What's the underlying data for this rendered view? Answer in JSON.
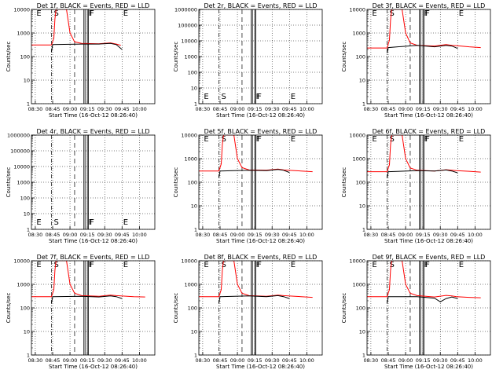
{
  "colors": {
    "events": "#000000",
    "lld": "#ff0000",
    "background": "#ffffff"
  },
  "chart_data": [
    {
      "type": "line",
      "title": "Det 1f, BLACK = Events, RED = LLD",
      "xlabel": "Start Time (16-Oct-12 08:26:40)",
      "ylabel": "Counts/sec",
      "ylog": true,
      "ylim": [
        1,
        10000
      ],
      "x_ticks": [
        "08:30",
        "08:45",
        "09:00",
        "09:15",
        "09:30",
        "09:45",
        "10:00"
      ],
      "y_ticks": [
        "1",
        "10",
        "100",
        "1000",
        "10000"
      ],
      "flags": [
        {
          "label": "E",
          "x": "08:30"
        },
        {
          "label": "S",
          "x": "08:45"
        },
        {
          "label": "F",
          "x": "09:15"
        },
        {
          "label": "F",
          "x": "09:16"
        },
        {
          "label": "E",
          "x": "09:45"
        }
      ],
      "series": [
        {
          "x": [
            "08:26",
            "08:44",
            "08:46",
            "08:47",
            "08:48",
            "08:53",
            "08:55",
            "08:57",
            "09:00",
            "09:04",
            "09:10",
            "09:25",
            "09:35",
            "09:40",
            "09:44"
          ],
          "y": [
            310,
            310,
            600,
            4000,
            10000,
            10000,
            10000,
            10000,
            1000,
            420,
            360,
            350,
            380,
            340,
            300
          ],
          "color": "#ff0000"
        },
        {
          "x": [
            "08:44",
            "08:45",
            "09:10",
            "09:25",
            "09:35",
            "09:40",
            "09:45"
          ],
          "y": [
            160,
            320,
            340,
            340,
            360,
            320,
            200
          ],
          "color": "#000000"
        }
      ]
    },
    {
      "type": "line",
      "title": "Det 2r, BLACK = Events, RED = LLD",
      "xlabel": "Start Time (16-Oct-12 08:26:40)",
      "ylabel": "Counts/sec",
      "ylog": true,
      "ylim": [
        1,
        1000000
      ],
      "x_ticks": [
        "08:30",
        "08:45",
        "09:00",
        "09:15",
        "09:30",
        "09:45",
        "10:00"
      ],
      "y_ticks": [
        "1",
        "10",
        "100",
        "1000",
        "10000",
        "100000",
        "1000000"
      ],
      "flags": [
        {
          "label": "E",
          "x": "08:30"
        },
        {
          "label": "S",
          "x": "08:45"
        },
        {
          "label": "F",
          "x": "09:15"
        },
        {
          "label": "F",
          "x": "09:16"
        },
        {
          "label": "E",
          "x": "09:45"
        }
      ],
      "series": []
    },
    {
      "type": "line",
      "title": "Det 3f, BLACK = Events, RED = LLD",
      "xlabel": "Start Time (16-Oct-12 08:26:40)",
      "ylabel": "Counts/sec",
      "ylog": true,
      "ylim": [
        1,
        10000
      ],
      "x_ticks": [
        "08:30",
        "08:45",
        "09:00",
        "09:15",
        "09:30",
        "09:45",
        "10:00"
      ],
      "y_ticks": [
        "1",
        "10",
        "100",
        "1000",
        "10000"
      ],
      "flags": [
        {
          "label": "E",
          "x": "08:30"
        },
        {
          "label": "S",
          "x": "08:45"
        },
        {
          "label": "F",
          "x": "09:15"
        },
        {
          "label": "F",
          "x": "09:16"
        },
        {
          "label": "E",
          "x": "09:45"
        }
      ],
      "series": [
        {
          "x": [
            "08:26",
            "08:44",
            "08:46",
            "08:47",
            "08:48",
            "08:53",
            "08:55",
            "08:57",
            "09:00",
            "09:04",
            "09:10",
            "09:25",
            "09:35",
            "09:40",
            "09:44",
            "09:55",
            "10:05"
          ],
          "y": [
            230,
            230,
            500,
            3500,
            10000,
            10000,
            10000,
            10000,
            1000,
            380,
            300,
            280,
            320,
            300,
            290,
            260,
            240
          ],
          "color": "#ff0000"
        },
        {
          "x": [
            "08:44",
            "08:45",
            "09:10",
            "09:25",
            "09:35",
            "09:40",
            "09:45"
          ],
          "y": [
            140,
            240,
            300,
            260,
            300,
            280,
            220
          ],
          "color": "#000000"
        }
      ]
    },
    {
      "type": "line",
      "title": "Det 4r, BLACK = Events, RED = LLD",
      "xlabel": "Start Time (16-Oct-12 08:26:40)",
      "ylabel": "Counts/sec",
      "ylog": true,
      "ylim": [
        1,
        1000000
      ],
      "x_ticks": [
        "08:30",
        "08:45",
        "09:00",
        "09:15",
        "09:30",
        "09:45",
        "10:00"
      ],
      "y_ticks": [
        "1",
        "10",
        "100",
        "1000",
        "10000",
        "100000",
        "1000000"
      ],
      "flags": [
        {
          "label": "E",
          "x": "08:30"
        },
        {
          "label": "S",
          "x": "08:45"
        },
        {
          "label": "F",
          "x": "09:15"
        },
        {
          "label": "F",
          "x": "09:16"
        },
        {
          "label": "E",
          "x": "09:45"
        }
      ],
      "series": []
    },
    {
      "type": "line",
      "title": "Det 5f, BLACK = Events, RED = LLD",
      "xlabel": "Start Time (16-Oct-12 08:26:40)",
      "ylabel": "Counts/sec",
      "ylog": true,
      "ylim": [
        1,
        10000
      ],
      "x_ticks": [
        "08:30",
        "08:45",
        "09:00",
        "09:15",
        "09:30",
        "09:45",
        "10:00"
      ],
      "y_ticks": [
        "1",
        "10",
        "100",
        "1000",
        "10000"
      ],
      "flags": [
        {
          "label": "E",
          "x": "08:30"
        },
        {
          "label": "S",
          "x": "08:45"
        },
        {
          "label": "F",
          "x": "09:15"
        },
        {
          "label": "F",
          "x": "09:16"
        },
        {
          "label": "E",
          "x": "09:45"
        }
      ],
      "series": [
        {
          "x": [
            "08:26",
            "08:44",
            "08:46",
            "08:47",
            "08:48",
            "08:53",
            "08:55",
            "08:57",
            "09:00",
            "09:04",
            "09:10",
            "09:25",
            "09:35",
            "09:40",
            "09:44",
            "09:55",
            "10:05"
          ],
          "y": [
            300,
            300,
            600,
            4000,
            10000,
            10000,
            10000,
            10000,
            1000,
            420,
            330,
            320,
            360,
            330,
            320,
            300,
            280
          ],
          "color": "#ff0000"
        },
        {
          "x": [
            "08:44",
            "08:45",
            "09:10",
            "09:25",
            "09:35",
            "09:40",
            "09:45"
          ],
          "y": [
            160,
            300,
            320,
            310,
            350,
            320,
            260
          ],
          "color": "#000000"
        }
      ]
    },
    {
      "type": "line",
      "title": "Det 6f, BLACK = Events, RED = LLD",
      "xlabel": "Start Time (16-Oct-12 08:26:40)",
      "ylabel": "Counts/sec",
      "ylog": true,
      "ylim": [
        1,
        10000
      ],
      "x_ticks": [
        "08:30",
        "08:45",
        "09:00",
        "09:15",
        "09:30",
        "09:45",
        "10:00"
      ],
      "y_ticks": [
        "1",
        "10",
        "100",
        "1000",
        "10000"
      ],
      "flags": [
        {
          "label": "E",
          "x": "08:30"
        },
        {
          "label": "S",
          "x": "08:45"
        },
        {
          "label": "F",
          "x": "09:15"
        },
        {
          "label": "F",
          "x": "09:16"
        },
        {
          "label": "E",
          "x": "09:45"
        }
      ],
      "series": [
        {
          "x": [
            "08:26",
            "08:44",
            "08:46",
            "08:47",
            "08:48",
            "08:53",
            "08:55",
            "08:57",
            "09:00",
            "09:04",
            "09:10",
            "09:25",
            "09:35",
            "09:40",
            "09:44",
            "09:55",
            "10:05"
          ],
          "y": [
            280,
            280,
            550,
            3800,
            10000,
            10000,
            10000,
            10000,
            1000,
            400,
            320,
            300,
            340,
            320,
            310,
            290,
            270
          ],
          "color": "#ff0000"
        },
        {
          "x": [
            "08:44",
            "08:45",
            "09:10",
            "09:25",
            "09:35",
            "09:40",
            "09:45"
          ],
          "y": [
            150,
            280,
            310,
            300,
            330,
            300,
            250
          ],
          "color": "#000000"
        }
      ]
    },
    {
      "type": "line",
      "title": "Det 7f, BLACK = Events, RED = LLD",
      "xlabel": "Start Time (16-Oct-12 08:26:40)",
      "ylabel": "Counts/sec",
      "ylog": true,
      "ylim": [
        1,
        10000
      ],
      "x_ticks": [
        "08:30",
        "08:45",
        "09:00",
        "09:15",
        "09:30",
        "09:45",
        "10:00"
      ],
      "y_ticks": [
        "1",
        "10",
        "100",
        "1000",
        "10000"
      ],
      "flags": [
        {
          "label": "E",
          "x": "08:30"
        },
        {
          "label": "S",
          "x": "08:45"
        },
        {
          "label": "F",
          "x": "09:15"
        },
        {
          "label": "F",
          "x": "09:16"
        },
        {
          "label": "E",
          "x": "09:45"
        }
      ],
      "series": [
        {
          "x": [
            "08:26",
            "08:44",
            "08:46",
            "08:47",
            "08:48",
            "08:53",
            "08:55",
            "08:57",
            "09:00",
            "09:04",
            "09:10",
            "09:25",
            "09:35",
            "09:40",
            "09:44",
            "09:55",
            "10:05"
          ],
          "y": [
            300,
            300,
            600,
            4000,
            10000,
            10000,
            10000,
            10000,
            1000,
            420,
            330,
            310,
            350,
            330,
            320,
            300,
            290
          ],
          "color": "#ff0000"
        },
        {
          "x": [
            "08:44",
            "08:45",
            "09:10",
            "09:25",
            "09:35",
            "09:40",
            "09:45"
          ],
          "y": [
            160,
            300,
            310,
            290,
            320,
            300,
            250
          ],
          "color": "#000000"
        }
      ]
    },
    {
      "type": "line",
      "title": "Det 8f, BLACK = Events, RED = LLD",
      "xlabel": "Start Time (16-Oct-12 08:26:40)",
      "ylabel": "Counts/sec",
      "ylog": true,
      "ylim": [
        1,
        10000
      ],
      "x_ticks": [
        "08:30",
        "08:45",
        "09:00",
        "09:15",
        "09:30",
        "09:45",
        "10:00"
      ],
      "y_ticks": [
        "1",
        "10",
        "100",
        "1000",
        "10000"
      ],
      "flags": [
        {
          "label": "E",
          "x": "08:30"
        },
        {
          "label": "S",
          "x": "08:45"
        },
        {
          "label": "F",
          "x": "09:15"
        },
        {
          "label": "F",
          "x": "09:16"
        },
        {
          "label": "E",
          "x": "09:45"
        }
      ],
      "series": [
        {
          "x": [
            "08:26",
            "08:44",
            "08:46",
            "08:47",
            "08:48",
            "08:53",
            "08:55",
            "08:57",
            "09:00",
            "09:04",
            "09:10",
            "09:25",
            "09:35",
            "09:40",
            "09:44",
            "09:55",
            "10:05"
          ],
          "y": [
            300,
            300,
            600,
            4000,
            10000,
            10000,
            10000,
            10000,
            1000,
            420,
            330,
            310,
            350,
            330,
            320,
            300,
            280
          ],
          "color": "#ff0000"
        },
        {
          "x": [
            "08:44",
            "08:45",
            "09:10",
            "09:25",
            "09:35",
            "09:40",
            "09:45"
          ],
          "y": [
            160,
            300,
            320,
            300,
            330,
            300,
            250
          ],
          "color": "#000000"
        }
      ]
    },
    {
      "type": "line",
      "title": "Det 9f, BLACK = Events, RED = LLD",
      "xlabel": "Start Time (16-Oct-12 08:26:40)",
      "ylabel": "Counts/sec",
      "ylog": true,
      "ylim": [
        1,
        10000
      ],
      "x_ticks": [
        "08:30",
        "08:45",
        "09:00",
        "09:15",
        "09:30",
        "09:45",
        "10:00"
      ],
      "y_ticks": [
        "1",
        "10",
        "100",
        "1000",
        "10000"
      ],
      "flags": [
        {
          "label": "E",
          "x": "08:30"
        },
        {
          "label": "S",
          "x": "08:45"
        },
        {
          "label": "F",
          "x": "09:15"
        },
        {
          "label": "F",
          "x": "09:16"
        },
        {
          "label": "E",
          "x": "09:45"
        }
      ],
      "series": [
        {
          "x": [
            "08:26",
            "08:44",
            "08:46",
            "08:47",
            "08:48",
            "08:53",
            "08:55",
            "08:57",
            "09:00",
            "09:04",
            "09:10",
            "09:25",
            "09:35",
            "09:40",
            "09:44",
            "09:55",
            "10:05"
          ],
          "y": [
            300,
            300,
            600,
            4000,
            10000,
            10000,
            10000,
            10000,
            1000,
            420,
            330,
            290,
            340,
            320,
            300,
            280,
            270
          ],
          "color": "#ff0000"
        },
        {
          "x": [
            "08:44",
            "08:45",
            "09:10",
            "09:25",
            "09:30",
            "09:35",
            "09:40",
            "09:45"
          ],
          "y": [
            160,
            300,
            300,
            260,
            180,
            250,
            290,
            250
          ],
          "color": "#000000"
        }
      ]
    }
  ]
}
